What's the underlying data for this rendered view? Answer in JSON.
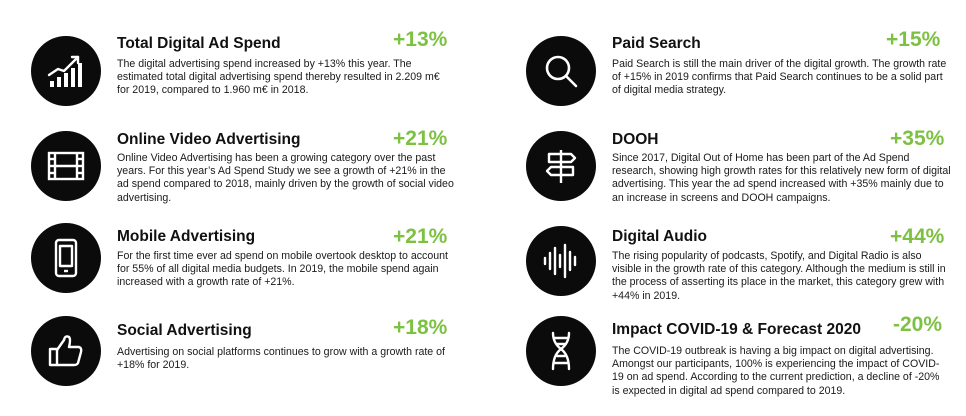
{
  "left": [
    {
      "icon": "growth-chart-icon",
      "title": "Total Digital Ad Spend",
      "percent": "+13%",
      "text": "The digital advertising spend increased by +13% this year. The estimated total digital advertising spend thereby resulted in 2.209 m€ for 2019, compared to 1.960 m€ in 2018."
    },
    {
      "icon": "film-strip-icon",
      "title": "Online Video Advertising",
      "percent": "+21%",
      "text": "Online Video Advertising has been a growing category over the past years. For this year’s Ad Spend Study we see a growth of +21% in the ad spend compared to 2018, mainly driven by the growth of social video advertising."
    },
    {
      "icon": "smartphone-icon",
      "title": "Mobile Advertising",
      "percent": "+21%",
      "text": "For the first time ever ad spend on mobile overtook desktop to account for 55% of all digital media budgets. In 2019, the mobile spend again increased with a growth rate of +21%."
    },
    {
      "icon": "thumbs-up-icon",
      "title": "Social Advertising",
      "percent": "+18%",
      "text": "Advertising on social platforms continues to grow with a growth rate of +18% for 2019."
    }
  ],
  "right": [
    {
      "icon": "magnifier-icon",
      "title": "Paid Search",
      "percent": "+15%",
      "text": "Paid Search is still the main driver of the digital growth. The growth rate of +15% in 2019 confirms that Paid Search continues to be a solid part of digital media strategy."
    },
    {
      "icon": "signpost-icon",
      "title": "DOOH",
      "percent": "+35%",
      "text": "Since 2017, Digital Out of Home has been part of the Ad Spend research, showing high growth rates for this relatively new form of digital advertising. This year the ad spend increased with +35% mainly due to an increase in screens and DOOH campaigns."
    },
    {
      "icon": "sound-wave-icon",
      "title": "Digital Audio",
      "percent": "+44%",
      "text": "The rising popularity of podcasts, Spotify, and Digital Radio is also visible in the growth rate of this category. Although the medium is still in the process of asserting its place in the market, this category grew with +44% in 2019."
    },
    {
      "icon": "dna-icon",
      "title": "Impact COVID-19 & Forecast 2020",
      "percent": "-20%",
      "text": "The COVID-19 outbreak is having a big impact on digital advertising. Amongst our participants, 100% is experiencing the impact of COVID-19 on ad spend. According to the current prediction, a decline of -20% is expected in digital ad spend compared to 2019."
    }
  ],
  "colors": {
    "accent": "#7dc142",
    "icon_bg": "#0b0b0b",
    "text": "#111111"
  }
}
